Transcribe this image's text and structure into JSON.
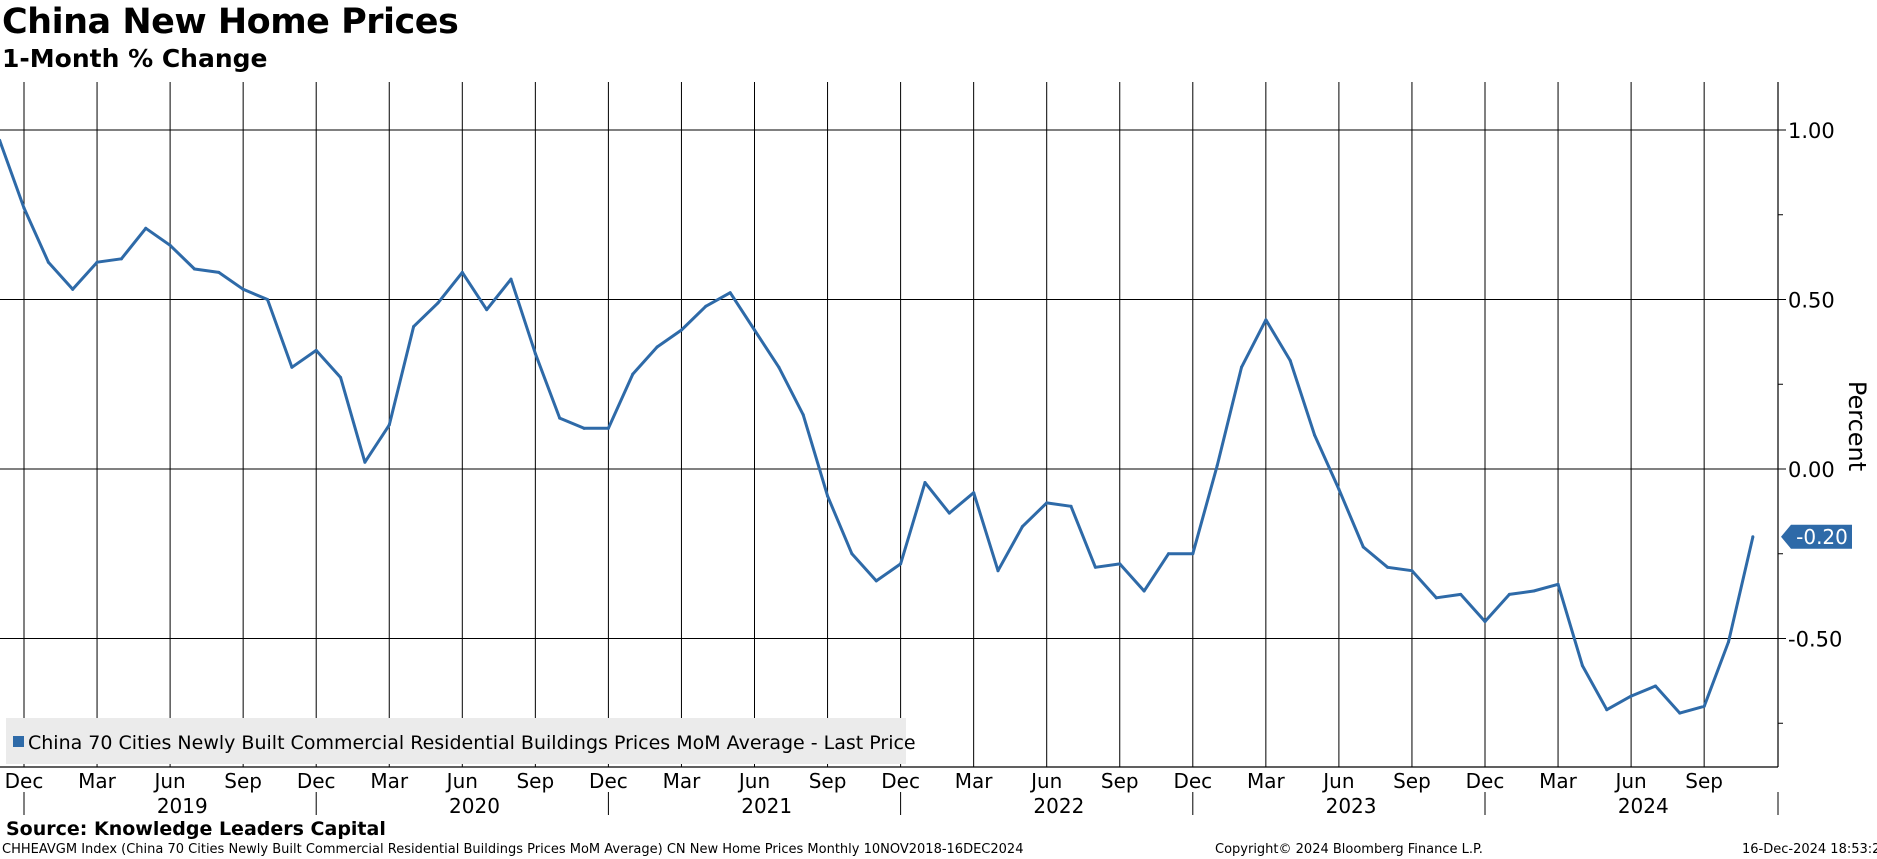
{
  "chart_data": {
    "type": "line",
    "title": "China New Home Prices",
    "subtitle": "1-Month % Change",
    "ylabel": "Percent",
    "ylim": [
      -0.9,
      1.15
    ],
    "yticks": [
      {
        "value": 1.0,
        "label": "1.00"
      },
      {
        "value": 0.5,
        "label": "0.50"
      },
      {
        "value": 0.0,
        "label": "0.00"
      },
      {
        "value": -0.5,
        "label": "-0.50"
      }
    ],
    "x_month_ticks": [
      {
        "date": "2018-12",
        "label": "Dec"
      },
      {
        "date": "2019-03",
        "label": "Mar"
      },
      {
        "date": "2019-06",
        "label": "Jun"
      },
      {
        "date": "2019-09",
        "label": "Sep"
      },
      {
        "date": "2019-12",
        "label": "Dec"
      },
      {
        "date": "2020-03",
        "label": "Mar"
      },
      {
        "date": "2020-06",
        "label": "Jun"
      },
      {
        "date": "2020-09",
        "label": "Sep"
      },
      {
        "date": "2020-12",
        "label": "Dec"
      },
      {
        "date": "2021-03",
        "label": "Mar"
      },
      {
        "date": "2021-06",
        "label": "Jun"
      },
      {
        "date": "2021-09",
        "label": "Sep"
      },
      {
        "date": "2021-12",
        "label": "Dec"
      },
      {
        "date": "2022-03",
        "label": "Mar"
      },
      {
        "date": "2022-06",
        "label": "Jun"
      },
      {
        "date": "2022-09",
        "label": "Sep"
      },
      {
        "date": "2022-12",
        "label": "Dec"
      },
      {
        "date": "2023-03",
        "label": "Mar"
      },
      {
        "date": "2023-06",
        "label": "Jun"
      },
      {
        "date": "2023-09",
        "label": "Sep"
      },
      {
        "date": "2023-12",
        "label": "Dec"
      },
      {
        "date": "2024-03",
        "label": "Mar"
      },
      {
        "date": "2024-06",
        "label": "Jun"
      },
      {
        "date": "2024-09",
        "label": "Sep"
      }
    ],
    "x_year_labels": [
      {
        "label": "2019",
        "date": "2019-07"
      },
      {
        "label": "2020",
        "date": "2020-07"
      },
      {
        "label": "2021",
        "date": "2021-07"
      },
      {
        "label": "2022",
        "date": "2022-07"
      },
      {
        "label": "2023",
        "date": "2023-07"
      },
      {
        "label": "2024",
        "date": "2024-07"
      }
    ],
    "x_range": [
      "2018-11",
      "2024-12"
    ],
    "grid": true,
    "legend_position": "bottom-left",
    "series": [
      {
        "name": "China 70 Cities Newly Built Commercial Residential Buildings Prices MoM Average - Last Price",
        "color": "#2e6aa8",
        "last_value_label": "-0.20",
        "x": [
          "2018-11",
          "2018-12",
          "2019-01",
          "2019-02",
          "2019-03",
          "2019-04",
          "2019-05",
          "2019-06",
          "2019-07",
          "2019-08",
          "2019-09",
          "2019-10",
          "2019-11",
          "2019-12",
          "2020-01",
          "2020-02",
          "2020-03",
          "2020-04",
          "2020-05",
          "2020-06",
          "2020-07",
          "2020-08",
          "2020-09",
          "2020-10",
          "2020-11",
          "2020-12",
          "2021-01",
          "2021-02",
          "2021-03",
          "2021-04",
          "2021-05",
          "2021-06",
          "2021-07",
          "2021-08",
          "2021-09",
          "2021-10",
          "2021-11",
          "2021-12",
          "2022-01",
          "2022-02",
          "2022-03",
          "2022-04",
          "2022-05",
          "2022-06",
          "2022-07",
          "2022-08",
          "2022-09",
          "2022-10",
          "2022-11",
          "2022-12",
          "2023-01",
          "2023-02",
          "2023-03",
          "2023-04",
          "2023-05",
          "2023-06",
          "2023-07",
          "2023-08",
          "2023-09",
          "2023-10",
          "2023-11",
          "2023-12",
          "2024-01",
          "2024-02",
          "2024-03",
          "2024-04",
          "2024-05",
          "2024-06",
          "2024-07",
          "2024-08",
          "2024-09",
          "2024-10",
          "2024-11"
        ],
        "values": [
          0.97,
          0.77,
          0.61,
          0.53,
          0.61,
          0.62,
          0.71,
          0.66,
          0.59,
          0.58,
          0.53,
          0.5,
          0.3,
          0.35,
          0.27,
          0.02,
          0.13,
          0.42,
          0.49,
          0.58,
          0.47,
          0.56,
          0.34,
          0.15,
          0.12,
          0.12,
          0.28,
          0.36,
          0.41,
          0.48,
          0.52,
          0.41,
          0.3,
          0.16,
          -0.08,
          -0.25,
          -0.33,
          -0.28,
          -0.04,
          -0.13,
          -0.07,
          -0.3,
          -0.17,
          -0.1,
          -0.11,
          -0.29,
          -0.28,
          -0.36,
          -0.25,
          -0.25,
          0.01,
          0.3,
          0.44,
          0.32,
          0.1,
          -0.06,
          -0.23,
          -0.29,
          -0.3,
          -0.38,
          -0.37,
          -0.45,
          -0.37,
          -0.36,
          -0.34,
          -0.58,
          -0.71,
          -0.67,
          -0.64,
          -0.72,
          -0.7,
          -0.51,
          -0.2
        ]
      }
    ]
  },
  "footer": {
    "source": "Source: Knowledge Leaders Capital",
    "description": "CHHEAVGM Index (China 70 Cities Newly Built Commercial Residential Buildings Prices MoM Average) CN New Home Prices  Monthly 10NOV2018-16DEC2024",
    "copyright": "Copyright© 2024 Bloomberg Finance L.P.",
    "timestamp": "16-Dec-2024 18:53:29"
  }
}
